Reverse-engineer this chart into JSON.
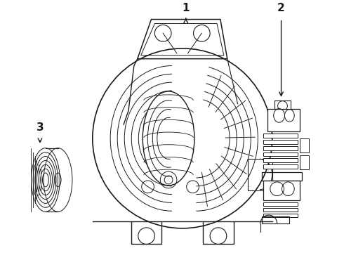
{
  "background_color": "#ffffff",
  "line_color": "#1a1a1a",
  "line_width": 0.9,
  "label_1": "1",
  "label_2": "2",
  "label_3": "3",
  "label_font_size": 11,
  "label_font_weight": "bold",
  "figsize": [
    4.9,
    3.6
  ],
  "dpi": 100
}
